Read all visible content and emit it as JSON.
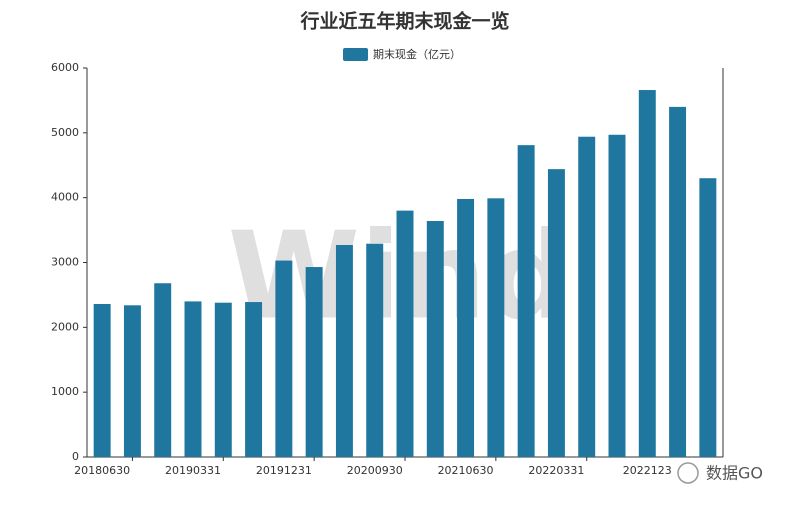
{
  "chart_data": {
    "type": "bar",
    "title": "行业近五年期末现金一览",
    "categories": [
      "20180630",
      null,
      null,
      "20190331",
      null,
      null,
      "20191231",
      null,
      null,
      "20200930",
      null,
      null,
      "20210630",
      null,
      null,
      "20220331",
      null,
      null,
      "2022123",
      null,
      null
    ],
    "series": [
      {
        "name": "期末现金（亿元）",
        "color": "#1f77a0",
        "values": [
          2360,
          2340,
          2680,
          2400,
          2380,
          2390,
          3030,
          2930,
          3270,
          3290,
          3800,
          3640,
          3980,
          3990,
          4810,
          4440,
          4940,
          4970,
          5660,
          5400,
          4300
        ]
      }
    ],
    "ylim": [
      0,
      6000
    ],
    "yticks": [
      0,
      1000,
      2000,
      3000,
      4000,
      5000,
      6000
    ],
    "watermark": "Wind",
    "logo_text": "数据GO"
  }
}
